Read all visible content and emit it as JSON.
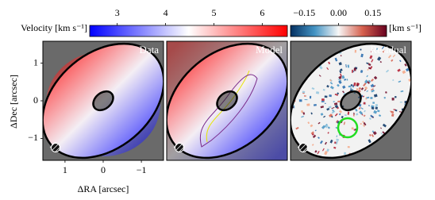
{
  "chart_data": {
    "type": "velocity-map",
    "colorbars": [
      {
        "label": "Velocity [km s⁻¹]",
        "lim": [
          2.43,
          6.52
        ],
        "ticks": [
          3,
          4,
          5,
          6
        ]
      },
      {
        "label": "[km s⁻¹]",
        "lim": [
          -0.21,
          0.21
        ],
        "ticks": [
          {
            "value": -0.15,
            "label": "−0.15"
          },
          {
            "value": 0,
            "label": "0.00"
          },
          {
            "value": 0.15,
            "label": "0.15"
          }
        ]
      }
    ],
    "panels": [
      {
        "title": "Data"
      },
      {
        "title": "Model"
      },
      {
        "title": "Residual"
      }
    ],
    "xlabel": "ΔRA [arcsec]",
    "ylabel": "ΔDec [arcsec]",
    "xlim": [
      1.58,
      -1.58
    ],
    "ylim": [
      -1.58,
      1.58
    ],
    "xticks": [
      1,
      0,
      {
        "value": -1,
        "label": "−1"
      }
    ],
    "yticks": [
      1,
      0,
      {
        "value": -1,
        "label": "−1"
      }
    ]
  }
}
